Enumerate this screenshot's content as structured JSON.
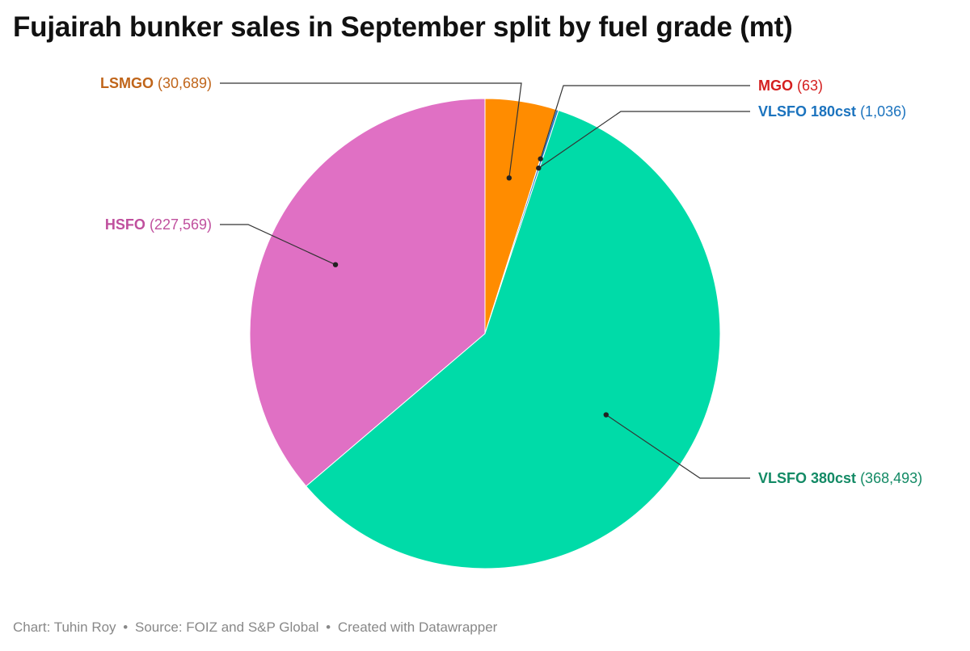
{
  "title": "Fujairah bunker sales in September split by fuel grade (mt)",
  "footer": {
    "chart_credit": "Chart: Tuhin Roy",
    "source": "Source: FOIZ and S&P Global",
    "created_with": "Created with Datawrapper",
    "separator": "•"
  },
  "chart_data": {
    "type": "pie",
    "slices": [
      {
        "name": "LSMGO",
        "value": 30689,
        "label": "(30,689)",
        "color": "#FF8C00",
        "label_color": "#C0651A"
      },
      {
        "name": "MGO",
        "value": 63,
        "label": "(63)",
        "color": "#E31A1C",
        "label_color": "#D41F1F"
      },
      {
        "name": "VLSFO 180cst",
        "value": 1036,
        "label": "(1,036)",
        "color": "#1F78C8",
        "label_color": "#1B73BE"
      },
      {
        "name": "VLSFO 380cst",
        "value": 368493,
        "label": "(368,493)",
        "color": "#00DBA8",
        "label_color": "#138A65"
      },
      {
        "name": "HSFO",
        "value": 227569,
        "label": "(227,569)",
        "color": "#E070C4",
        "label_color": "#C0509E"
      }
    ],
    "start_angle": "top",
    "direction": "clockwise"
  }
}
